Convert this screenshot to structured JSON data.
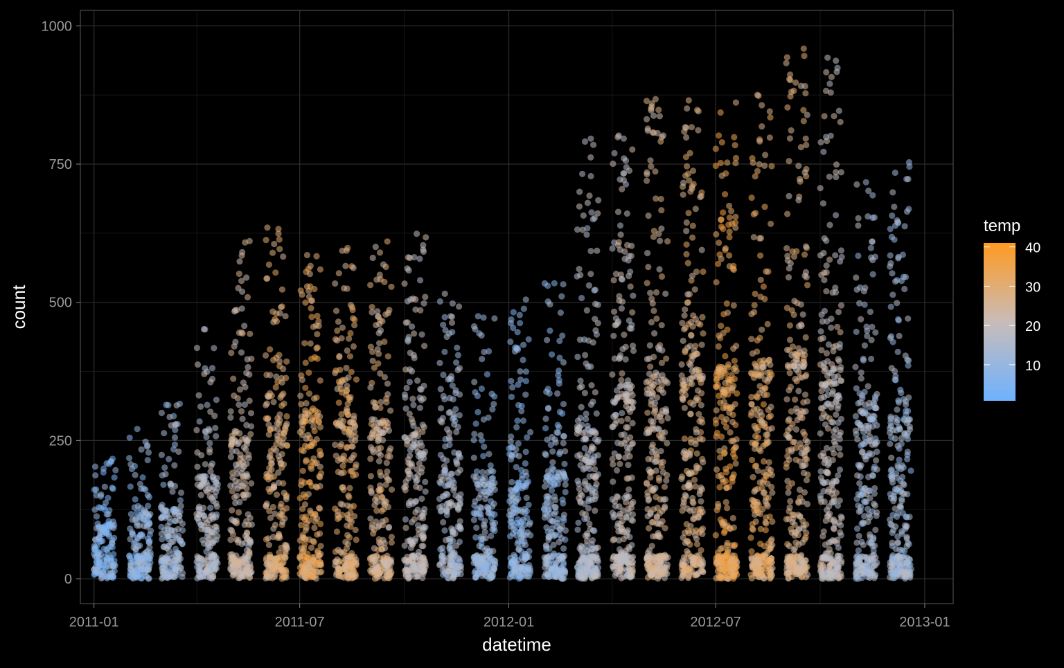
{
  "chart_data": {
    "type": "scatter",
    "title": "",
    "xlabel": "datetime",
    "ylabel": "count",
    "x_ticks": [
      "2011-01",
      "2011-07",
      "2012-01",
      "2012-07",
      "2013-01"
    ],
    "y_ticks": [
      0,
      250,
      500,
      750,
      1000
    ],
    "xlim": [
      "2010-12-20",
      "2013-01-26"
    ],
    "ylim": [
      -45,
      1028
    ],
    "grid": true,
    "background": "#000000",
    "color_scale": {
      "variable": "temp",
      "ticks": [
        10,
        20,
        30,
        40
      ],
      "range": [
        0.82,
        41
      ],
      "low_color": "#6eb2ff",
      "mid_color": "#c8bcb9",
      "high_color": "#ff9a22"
    },
    "legend_position": "right",
    "point_alpha": 0.55,
    "months": [
      {
        "month": "2011-01",
        "max": 219,
        "upper_median": 90,
        "temp": 7
      },
      {
        "month": "2011-02",
        "max": 285,
        "upper_median": 110,
        "temp": 9
      },
      {
        "month": "2011-03",
        "max": 330,
        "upper_median": 120,
        "temp": 13
      },
      {
        "month": "2011-04",
        "max": 452,
        "upper_median": 170,
        "temp": 17
      },
      {
        "month": "2011-05",
        "max": 611,
        "upper_median": 240,
        "temp": 22
      },
      {
        "month": "2011-06",
        "max": 638,
        "upper_median": 270,
        "temp": 28
      },
      {
        "month": "2011-07",
        "max": 596,
        "upper_median": 280,
        "temp": 31
      },
      {
        "month": "2011-08",
        "max": 600,
        "upper_median": 270,
        "temp": 29
      },
      {
        "month": "2011-09",
        "max": 628,
        "upper_median": 260,
        "temp": 26
      },
      {
        "month": "2011-10",
        "max": 625,
        "upper_median": 240,
        "temp": 20
      },
      {
        "month": "2011-11",
        "max": 520,
        "upper_median": 210,
        "temp": 15
      },
      {
        "month": "2011-12",
        "max": 476,
        "upper_median": 170,
        "temp": 11
      },
      {
        "month": "2012-01",
        "max": 512,
        "upper_median": 160,
        "temp": 9
      },
      {
        "month": "2012-02",
        "max": 540,
        "upper_median": 180,
        "temp": 11
      },
      {
        "month": "2012-03",
        "max": 800,
        "upper_median": 260,
        "temp": 17
      },
      {
        "month": "2012-04",
        "max": 822,
        "upper_median": 320,
        "temp": 20
      },
      {
        "month": "2012-05",
        "max": 873,
        "upper_median": 340,
        "temp": 24
      },
      {
        "month": "2012-06",
        "max": 869,
        "upper_median": 360,
        "temp": 27
      },
      {
        "month": "2012-07",
        "max": 873,
        "upper_median": 350,
        "temp": 33
      },
      {
        "month": "2012-08",
        "max": 897,
        "upper_median": 360,
        "temp": 30
      },
      {
        "month": "2012-09",
        "max": 977,
        "upper_median": 380,
        "temp": 26
      },
      {
        "month": "2012-10",
        "max": 948,
        "upper_median": 350,
        "temp": 20
      },
      {
        "month": "2012-11",
        "max": 725,
        "upper_median": 290,
        "temp": 14
      },
      {
        "month": "2012-12",
        "max": 760,
        "upper_median": 270,
        "temp": 13
      }
    ]
  }
}
